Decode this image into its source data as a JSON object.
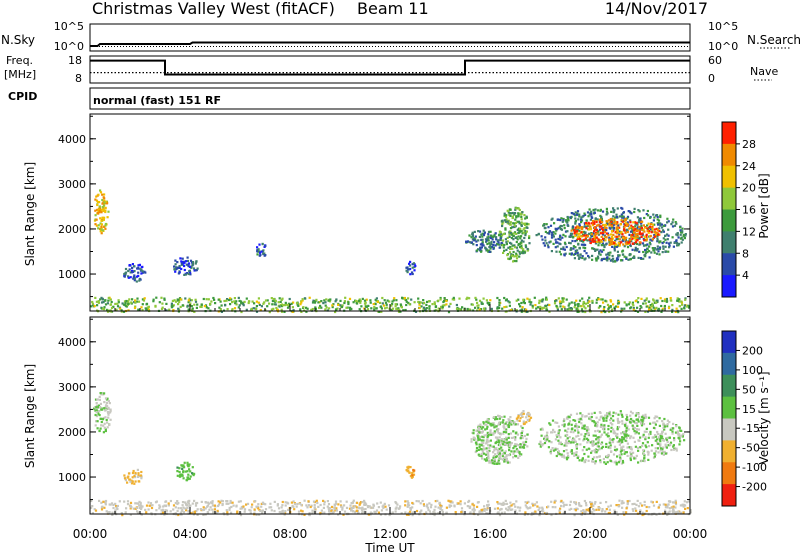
{
  "header": {
    "title": "Christmas Valley West (fitACF)",
    "beam": "Beam 11",
    "date": "14/Nov/2017"
  },
  "noise_panel": {
    "left_label": "N.Sky",
    "right_label": "N.Search",
    "left_ticks": [
      "10^5",
      "10^0"
    ],
    "right_ticks": [
      "10^5",
      "10^0"
    ]
  },
  "freq_panel": {
    "left_label_line1": "Freq.",
    "left_label_line2": "[MHz]",
    "right_label": "Nave",
    "left_ticks": [
      "18",
      "8"
    ],
    "right_ticks": [
      "60",
      "0"
    ]
  },
  "cpid_panel": {
    "label": "CPID",
    "value": "normal (fast) 151 RF"
  },
  "power_panel": {
    "ylabel": "Slant Range [km]",
    "yticks": [
      "4000",
      "3000",
      "2000",
      "1000"
    ],
    "colorbar_label": "Power [dB]",
    "colorbar_ticks": [
      "28",
      "24",
      "20",
      "16",
      "12",
      "8",
      "4"
    ],
    "colors": [
      "#1a1aff",
      "#2a4aa8",
      "#3f7f6e",
      "#3c9a3c",
      "#8fc83a",
      "#f0c000",
      "#f08a00",
      "#ff2000"
    ]
  },
  "velocity_panel": {
    "ylabel": "Slant Range [km]",
    "yticks": [
      "4000",
      "3000",
      "2000",
      "1000"
    ],
    "colorbar_label": "Velocity [m s⁻¹]",
    "colorbar_ticks": [
      "200",
      "100",
      "50",
      "15",
      "-15",
      "-50",
      "-100",
      "-200"
    ],
    "colors": [
      "#2030c0",
      "#2f6aa0",
      "#3d8f5a",
      "#5cc040",
      "#c8c8c0",
      "#f0b030",
      "#f07a10",
      "#f02010"
    ]
  },
  "x_axis": {
    "ticks": [
      "00:00",
      "04:00",
      "08:00",
      "12:00",
      "16:00",
      "20:00",
      "00:00"
    ],
    "label": "Time UT"
  },
  "chart_data": [
    {
      "type": "line",
      "panel": "noise",
      "series": [
        {
          "name": "N.Sky",
          "x_hours": [
            0,
            0.3,
            0.4,
            4.0,
            4.1,
            24
          ],
          "y_level": [
            0.1,
            0.1,
            0.3,
            0.3,
            0.45,
            0.45
          ]
        }
      ]
    },
    {
      "type": "line",
      "panel": "frequency",
      "units": "MHz",
      "ylim": [
        8,
        18
      ],
      "series": [
        {
          "name": "Freq.",
          "x_hours": [
            0,
            3.0,
            3.0,
            15.0,
            15.0,
            24
          ],
          "y": [
            16.5,
            16.5,
            10.7,
            10.7,
            16.5,
            16.5
          ]
        },
        {
          "name": "Nave",
          "x_hours": [
            0,
            24
          ],
          "y": [
            11.5,
            11.5
          ]
        }
      ]
    },
    {
      "type": "heatmap",
      "panel": "power",
      "x_range_hours": [
        0,
        24
      ],
      "y_range_km": [
        180,
        4550
      ],
      "zlim_dB": [
        0,
        32
      ],
      "regions": [
        {
          "t0": 0.1,
          "t1": 0.7,
          "r0": 1900,
          "r1": 2900,
          "level": 22
        },
        {
          "t0": 1.3,
          "t1": 2.2,
          "r0": 850,
          "r1": 1250,
          "level": 6
        },
        {
          "t0": 3.2,
          "t1": 4.3,
          "r0": 1000,
          "r1": 1400,
          "level": 6
        },
        {
          "t0": 6.6,
          "t1": 7.1,
          "r0": 1400,
          "r1": 1700,
          "level": 8
        },
        {
          "t0": 12.6,
          "t1": 13.0,
          "r0": 1000,
          "r1": 1300,
          "level": 6
        },
        {
          "t0": 15.0,
          "t1": 16.5,
          "r0": 1500,
          "r1": 2000,
          "level": 10
        },
        {
          "t0": 16.3,
          "t1": 17.6,
          "r0": 1300,
          "r1": 2500,
          "level": 14
        },
        {
          "t0": 17.8,
          "t1": 23.8,
          "r0": 1300,
          "r1": 2500,
          "level": 10
        },
        {
          "t0": 19.2,
          "t1": 22.8,
          "r0": 1650,
          "r1": 2250,
          "level": 27
        },
        {
          "t0": 0.0,
          "t1": 24.0,
          "r0": 180,
          "r1": 500,
          "level": 16
        }
      ]
    },
    {
      "type": "heatmap",
      "panel": "velocity",
      "x_range_hours": [
        0,
        24
      ],
      "y_range_km": [
        180,
        4550
      ],
      "zlim_ms": [
        -200,
        200
      ],
      "regions": [
        {
          "t0": 0.1,
          "t1": 0.8,
          "r0": 2000,
          "r1": 2900,
          "value": 0
        },
        {
          "t0": 1.3,
          "t1": 2.1,
          "r0": 850,
          "r1": 1200,
          "value": -60
        },
        {
          "t0": 3.4,
          "t1": 4.2,
          "r0": 950,
          "r1": 1350,
          "value": 30
        },
        {
          "t0": 12.6,
          "t1": 13.0,
          "r0": 1000,
          "r1": 1300,
          "value": -80
        },
        {
          "t0": 15.2,
          "t1": 17.5,
          "r0": 1300,
          "r1": 2400,
          "value": 0
        },
        {
          "t0": 17.0,
          "t1": 17.6,
          "r0": 2200,
          "r1": 2500,
          "value": -50
        },
        {
          "t0": 17.8,
          "t1": 23.8,
          "r0": 1300,
          "r1": 2500,
          "value": 0
        },
        {
          "t0": 0.0,
          "t1": 24.0,
          "r0": 180,
          "r1": 500,
          "value": -30
        }
      ]
    }
  ]
}
